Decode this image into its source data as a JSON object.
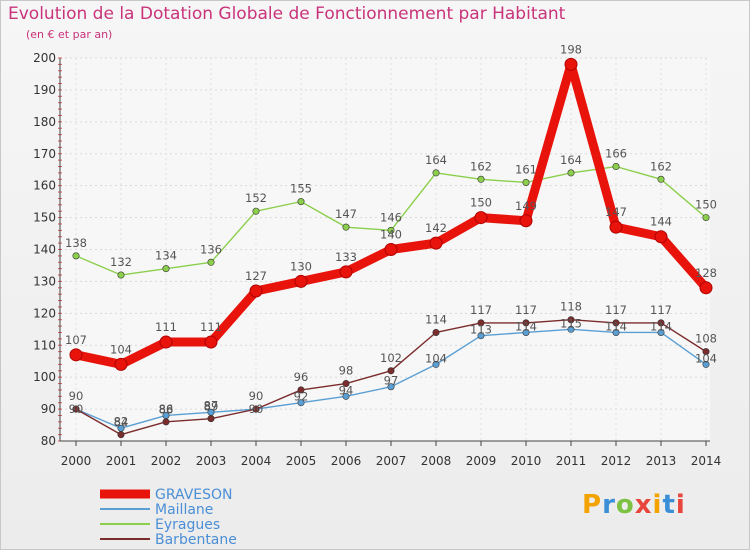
{
  "header": {
    "title": "Evolution de la Dotation Globale de Fonctionnement par Habitant",
    "subtitle": "(en € et par an)"
  },
  "brand": {
    "letters": [
      "P",
      "r",
      "o",
      "x",
      "i",
      "t",
      "i"
    ],
    "colors": [
      "#f2a300",
      "#3a8fd6",
      "#7dc242",
      "#e8453c",
      "#f2a300",
      "#3a8fd6",
      "#e8453c"
    ]
  },
  "chart_data": {
    "type": "line",
    "title": "Evolution de la Dotation Globale de Fonctionnement par Habitant",
    "subtitle": "(en € et par an)",
    "xlabel": "",
    "ylabel": "",
    "x": [
      "2000",
      "2001",
      "2002",
      "2003",
      "2004",
      "2005",
      "2006",
      "2007",
      "2008",
      "2009",
      "2010",
      "2011",
      "2012",
      "2013",
      "2014"
    ],
    "ylim": [
      80,
      200
    ],
    "yticks": [
      80,
      90,
      100,
      110,
      120,
      130,
      140,
      150,
      160,
      170,
      180,
      190,
      200
    ],
    "grid": true,
    "legend_position": "bottom-left",
    "series": [
      {
        "name": "GRAVESON",
        "color": "#e8140c",
        "values": [
          107,
          104,
          111,
          111,
          127,
          130,
          133,
          140,
          142,
          150,
          149,
          198,
          147,
          144,
          128
        ]
      },
      {
        "name": "Maillane",
        "color": "#5a9fd4",
        "values": [
          90,
          84,
          88,
          89,
          90,
          92,
          94,
          97,
          104,
          113,
          114,
          115,
          114,
          114,
          104
        ]
      },
      {
        "name": "Eyragues",
        "color": "#8ccf4d",
        "values": [
          138,
          132,
          134,
          136,
          152,
          155,
          147,
          146,
          164,
          162,
          161,
          164,
          166,
          162,
          150
        ]
      },
      {
        "name": "Barbentane",
        "color": "#7b2c2c",
        "values": [
          90,
          82,
          86,
          87,
          90,
          96,
          98,
          102,
          114,
          117,
          117,
          118,
          117,
          117,
          108
        ]
      }
    ]
  }
}
